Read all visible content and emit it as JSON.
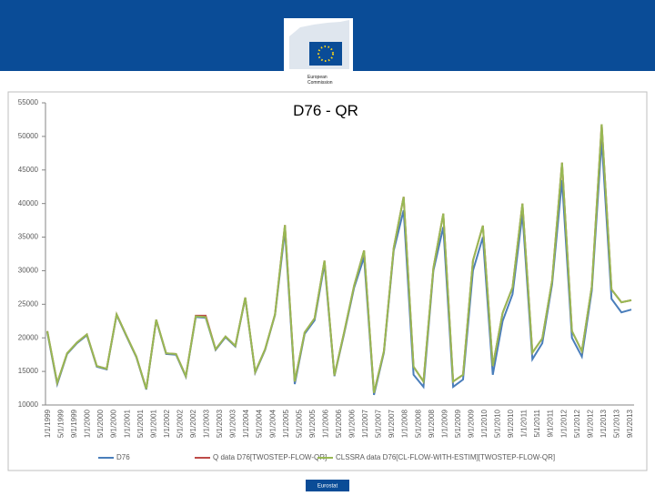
{
  "header": {
    "logo_text": "European\nCommission"
  },
  "footer": {
    "label": "Eurostat"
  },
  "chart_data": {
    "type": "line",
    "title": "D76 - QR",
    "ylim": [
      10000,
      55000
    ],
    "yticks": [
      10000,
      15000,
      20000,
      25000,
      30000,
      35000,
      40000,
      45000,
      50000,
      55000
    ],
    "grid": false,
    "legend": "bottom",
    "xticks": [
      "1/1/1999",
      "5/1/1999",
      "9/1/1999",
      "1/1/2000",
      "5/1/2000",
      "9/1/2000",
      "1/1/2001",
      "5/1/2001",
      "9/1/2001",
      "1/1/2002",
      "5/1/2002",
      "9/1/2002",
      "1/1/2003",
      "5/1/2003",
      "9/1/2003",
      "1/1/2004",
      "5/1/2004",
      "9/1/2004",
      "1/1/2005",
      "5/1/2005",
      "9/1/2005",
      "1/1/2006",
      "5/1/2006",
      "9/1/2006",
      "1/1/2007",
      "5/1/2007",
      "9/1/2007",
      "1/1/2008",
      "5/1/2008",
      "9/1/2008",
      "1/1/2009",
      "5/1/2009",
      "9/1/2009",
      "1/1/2010",
      "5/1/2010",
      "9/1/2010",
      "1/1/2011",
      "5/1/2011",
      "9/1/2011",
      "1/1/2012",
      "5/1/2012",
      "9/1/2012",
      "1/1/2013",
      "5/1/2013",
      "9/1/2013"
    ],
    "series": [
      {
        "name": "D76",
        "color": "#4a7ebb",
        "values": [
          20800,
          13100,
          17600,
          19200,
          20400,
          15700,
          15300,
          23400,
          20200,
          17100,
          12300,
          22600,
          17600,
          17500,
          14200,
          23100,
          23000,
          18200,
          20100,
          18700,
          25900,
          14800,
          18200,
          23400,
          36000,
          13100,
          20600,
          22600,
          31000,
          14300,
          20700,
          27500,
          32000,
          11500,
          17800,
          33000,
          39000,
          14500,
          12700,
          30000,
          36500,
          12700,
          13800,
          30000,
          35000,
          14500,
          22500,
          26500,
          38500,
          16800,
          19200,
          28000,
          43500,
          20000,
          17200,
          27000,
          49500,
          25800,
          23800,
          24200
        ]
      },
      {
        "name": "Q data D76[TWOSTEP-FLOW-QR]",
        "color": "#be4b48",
        "values": [
          21000,
          13300,
          17700,
          19300,
          20500,
          15800,
          15400,
          23500,
          20300,
          17200,
          12400,
          22700,
          17700,
          17600,
          14300,
          23300,
          23300,
          18300,
          20200,
          18800,
          26000,
          14900,
          18300,
          23500,
          36800,
          13500,
          20800,
          22900,
          31500,
          14400,
          20900,
          27800,
          33000,
          11800,
          18000,
          33400,
          41000,
          15700,
          13500,
          30400,
          38500,
          13500,
          14500,
          31500,
          36700,
          15800,
          23700,
          27500,
          40000,
          17800,
          19900,
          28500,
          46100,
          21000,
          18000,
          27600,
          51800,
          27200,
          25300,
          25600
        ]
      },
      {
        "name": "CLSSRA data D76[CL-FLOW-WITH-ESTIM][TWOSTEP-FLOW-QR]",
        "color": "#98b954",
        "values": [
          21000,
          13300,
          17700,
          19300,
          20500,
          15800,
          15400,
          23500,
          20300,
          17200,
          12400,
          22700,
          17700,
          17600,
          14300,
          23200,
          23100,
          18300,
          20200,
          18800,
          26000,
          14900,
          18300,
          23500,
          36800,
          13500,
          20800,
          22900,
          31500,
          14400,
          20900,
          27800,
          33000,
          11800,
          18000,
          33400,
          41000,
          15700,
          13500,
          30400,
          38500,
          13500,
          14500,
          31500,
          36700,
          15800,
          23700,
          27500,
          40000,
          17800,
          19900,
          28500,
          46100,
          21000,
          18000,
          27600,
          51800,
          27200,
          25300,
          25600
        ]
      }
    ]
  }
}
